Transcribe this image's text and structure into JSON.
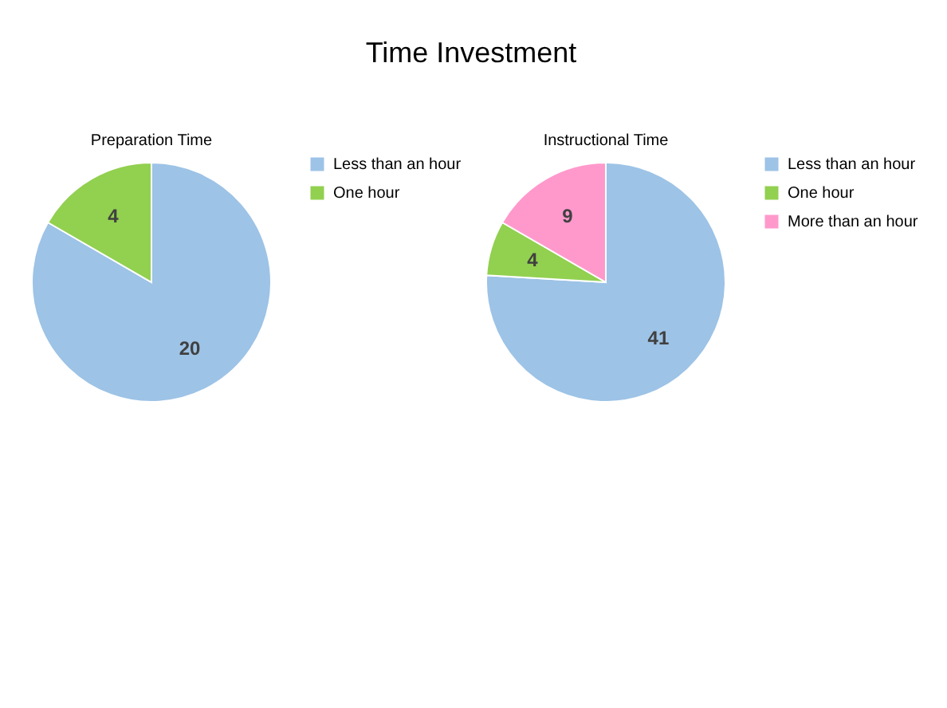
{
  "chart_data": [
    {
      "type": "pie",
      "title": "Preparation Time",
      "annotations": [
        "Time Investment"
      ],
      "categories": [
        "Less than an hour",
        "One hour"
      ],
      "values": [
        20,
        4
      ],
      "colors": [
        "#9dc3e6",
        "#92d050"
      ],
      "data_labels": true,
      "legend": "right"
    },
    {
      "type": "pie",
      "title": "Instructional Time",
      "categories": [
        "Less than an hour",
        "One hour",
        "More than an hour"
      ],
      "values": [
        41,
        4,
        9
      ],
      "colors": [
        "#9dc3e6",
        "#92d050",
        "#ff99cc"
      ],
      "data_labels": true,
      "legend": "right"
    }
  ]
}
